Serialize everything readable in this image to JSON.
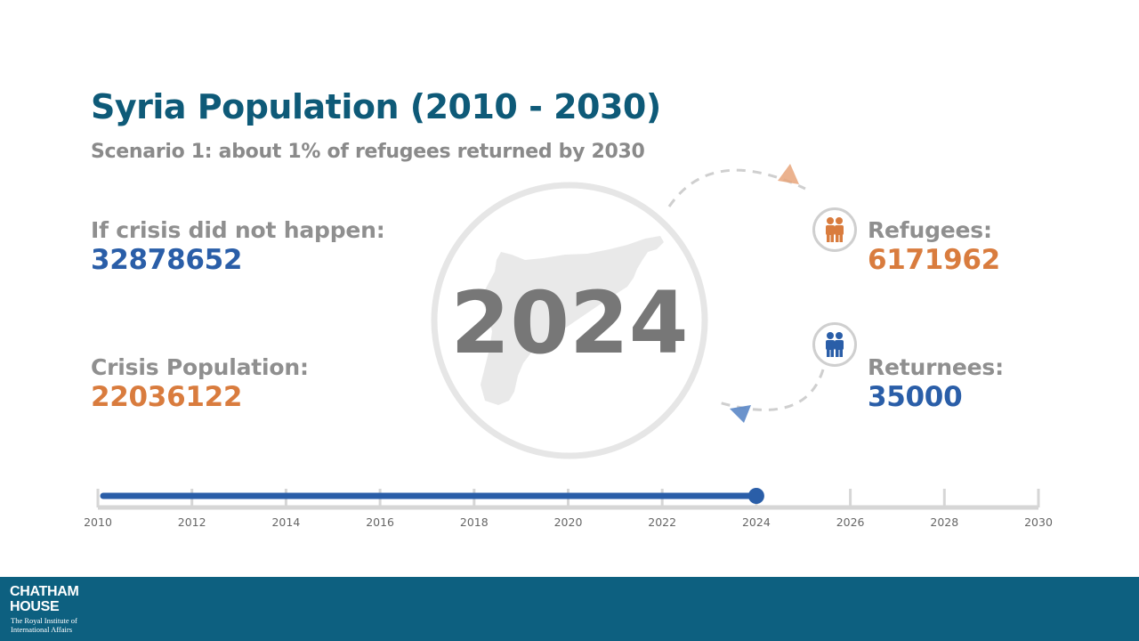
{
  "header": {
    "title": "Syria Population (2010 - 2030)",
    "subtitle": "Scenario 1: about 1% of refugees returned by 2030"
  },
  "left_stats": {
    "no_crisis_label": "If crisis did not happen:",
    "no_crisis_value": "32878652",
    "crisis_label": "Crisis Population:",
    "crisis_value": "22036122"
  },
  "center": {
    "year": "2024",
    "map": "syria-map-silhouette"
  },
  "right_stats": {
    "refugees_label": "Refugees:",
    "refugees_value": "6171962",
    "returnees_label": "Returnees:",
    "returnees_value": "35000"
  },
  "timeline": {
    "ticks": [
      "2010",
      "2012",
      "2014",
      "2016",
      "2018",
      "2020",
      "2022",
      "2024",
      "2026",
      "2028",
      "2030"
    ],
    "start": 2010,
    "end": 2030,
    "current": 2024
  },
  "footer": {
    "logo_line1": "CHATHAM",
    "logo_line2": "HOUSE",
    "logo_sub1": "The Royal Institute of",
    "logo_sub2": "International Affairs"
  },
  "colors": {
    "title": "#0e5a78",
    "label_grey": "#8f8f8f",
    "blue": "#2a5ea8",
    "orange": "#d97c3e",
    "footer_bg": "#0d6080"
  }
}
